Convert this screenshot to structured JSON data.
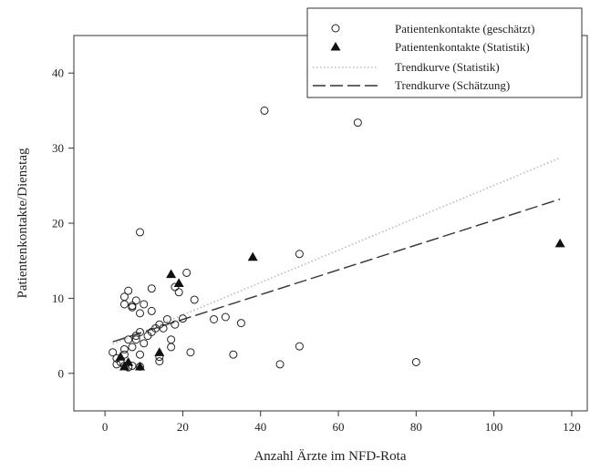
{
  "chart_data": {
    "type": "scatter",
    "xlabel": "Anzahl Ärzte im NFD-Rota",
    "ylabel": "Patientenkontakte/Dienstag",
    "xlim": [
      -8,
      124
    ],
    "ylim": [
      -5,
      45
    ],
    "x_ticks": [
      0,
      20,
      40,
      60,
      80,
      100,
      120
    ],
    "y_ticks": [
      0,
      10,
      20,
      30,
      40
    ],
    "legend_position": "top-right",
    "series": [
      {
        "name": "Patientenkontakte (geschätzt)",
        "marker": "circle-open",
        "points": [
          [
            2,
            2.8
          ],
          [
            3,
            1.2
          ],
          [
            3,
            2.0
          ],
          [
            4,
            1.5
          ],
          [
            5,
            1.0
          ],
          [
            5,
            2.5
          ],
          [
            5,
            3.2
          ],
          [
            5,
            9.2
          ],
          [
            5,
            10.2
          ],
          [
            6,
            0.8
          ],
          [
            6,
            4.5
          ],
          [
            6,
            11.0
          ],
          [
            7,
            1.0
          ],
          [
            7,
            3.5
          ],
          [
            7,
            8.8
          ],
          [
            7,
            9.0
          ],
          [
            8,
            4.5
          ],
          [
            8,
            5.0
          ],
          [
            8,
            9.7
          ],
          [
            9,
            0.9
          ],
          [
            9,
            2.5
          ],
          [
            9,
            5.5
          ],
          [
            9,
            8.0
          ],
          [
            9,
            18.8
          ],
          [
            10,
            4.0
          ],
          [
            10,
            9.2
          ],
          [
            11,
            5.0
          ],
          [
            12,
            5.5
          ],
          [
            12,
            8.3
          ],
          [
            12,
            11.3
          ],
          [
            13,
            6.0
          ],
          [
            14,
            1.6
          ],
          [
            14,
            2.2
          ],
          [
            14,
            6.5
          ],
          [
            15,
            6.0
          ],
          [
            16,
            7.2
          ],
          [
            17,
            3.5
          ],
          [
            17,
            4.5
          ],
          [
            18,
            6.5
          ],
          [
            18,
            11.5
          ],
          [
            19,
            10.8
          ],
          [
            20,
            7.3
          ],
          [
            21,
            13.4
          ],
          [
            22,
            2.8
          ],
          [
            23,
            9.8
          ],
          [
            28,
            7.2
          ],
          [
            31,
            7.5
          ],
          [
            33,
            2.5
          ],
          [
            35,
            6.7
          ],
          [
            41,
            35.0
          ],
          [
            45,
            1.2
          ],
          [
            50,
            3.6
          ],
          [
            50,
            15.9
          ],
          [
            65,
            33.4
          ],
          [
            80,
            1.5
          ]
        ]
      },
      {
        "name": "Patientenkontakte (Statistik)",
        "marker": "triangle-filled",
        "points": [
          [
            4,
            2.2
          ],
          [
            5,
            0.9
          ],
          [
            6,
            1.5
          ],
          [
            9,
            0.9
          ],
          [
            14,
            2.8
          ],
          [
            17,
            13.2
          ],
          [
            19,
            12.0
          ],
          [
            38,
            15.5
          ],
          [
            117,
            17.3
          ]
        ]
      }
    ],
    "trend_lines": [
      {
        "name": "Trendkurve (Statistik)",
        "style": "dotted-gray",
        "x": [
          2,
          117
        ],
        "y": [
          3.9,
          28.7
        ]
      },
      {
        "name": "Trendkurve (Schätzung)",
        "style": "long-dash-black",
        "x": [
          2,
          117
        ],
        "y": [
          4.2,
          23.2
        ]
      }
    ],
    "colors": {
      "trend_statistik": "#b9b9b9",
      "trend_schaetzung": "#333333",
      "markers": "#222222"
    }
  }
}
